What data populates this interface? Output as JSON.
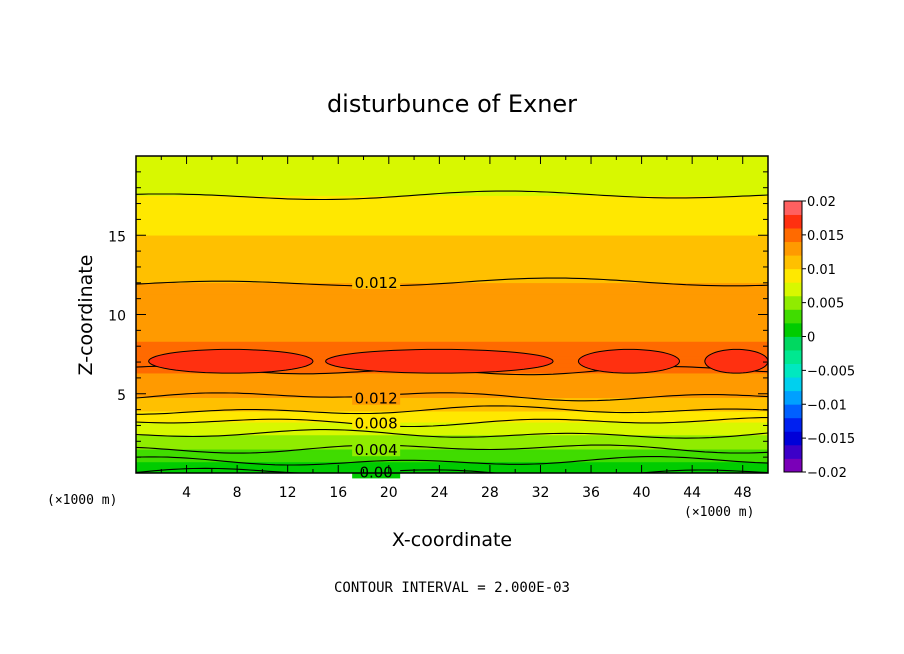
{
  "chart_data": {
    "type": "heatmap",
    "title": "disturbunce of Exner",
    "xlabel": "X-coordinate",
    "ylabel": "Z-coordinate",
    "x_unit": "(×1000 m)",
    "x_ticks": [
      "4",
      "8",
      "12",
      "16",
      "20",
      "24",
      "28",
      "32",
      "36",
      "40",
      "44",
      "48"
    ],
    "y_ticks": [
      "5",
      "10",
      "15"
    ],
    "xlim": [
      0,
      50
    ],
    "ylim": [
      0,
      20
    ],
    "colorbar": {
      "ticks": [
        "0.02",
        "0.015",
        "0.01",
        "0.005",
        "0",
        "−0.005",
        "−0.01",
        "−0.015",
        "−0.02"
      ],
      "range": [
        -0.02,
        0.02
      ],
      "levels": [
        -0.02,
        -0.018,
        -0.016,
        -0.014,
        -0.012,
        -0.01,
        -0.008,
        -0.006,
        -0.004,
        -0.002,
        0,
        0.002,
        0.004,
        0.006,
        0.008,
        0.01,
        0.012,
        0.014,
        0.016,
        0.018,
        0.02
      ],
      "colors": [
        "#7a00b8",
        "#3c00c8",
        "#0000d8",
        "#0020f0",
        "#0060ff",
        "#00a0ff",
        "#00d0ee",
        "#00e8c0",
        "#00e890",
        "#00d860",
        "#00cc00",
        "#40dc00",
        "#90ec00",
        "#d8f800",
        "#ffe800",
        "#ffc000",
        "#ff9a00",
        "#ff6a00",
        "#ff3010",
        "#ff6060"
      ]
    },
    "z_profile": [
      {
        "z": 0.0,
        "value": 0.0
      },
      {
        "z": 0.35,
        "value": 0.001
      },
      {
        "z": 0.7,
        "value": 0.002
      },
      {
        "z": 1.1,
        "value": 0.003
      },
      {
        "z": 1.5,
        "value": 0.004
      },
      {
        "z": 1.95,
        "value": 0.005
      },
      {
        "z": 2.4,
        "value": 0.006
      },
      {
        "z": 2.8,
        "value": 0.007
      },
      {
        "z": 3.2,
        "value": 0.008
      },
      {
        "z": 3.55,
        "value": 0.009
      },
      {
        "z": 3.9,
        "value": 0.01
      },
      {
        "z": 4.3,
        "value": 0.011
      },
      {
        "z": 4.75,
        "value": 0.012
      },
      {
        "z": 5.5,
        "value": 0.0128
      },
      {
        "z": 6.3,
        "value": 0.014
      },
      {
        "z": 7.3,
        "value": 0.0147
      },
      {
        "z": 8.3,
        "value": 0.014
      },
      {
        "z": 9.8,
        "value": 0.013
      },
      {
        "z": 12.0,
        "value": 0.012
      },
      {
        "z": 13.2,
        "value": 0.011
      },
      {
        "z": 15.0,
        "value": 0.01
      },
      {
        "z": 17.5,
        "value": 0.008
      },
      {
        "z": 19.8,
        "value": 0.0072
      }
    ],
    "contour_labels": [
      "0.012",
      "0.012",
      "0.008",
      "0.004",
      "0.00"
    ],
    "contour_interval_note": "CONTOUR INTERVAL = 2.000E-03"
  }
}
